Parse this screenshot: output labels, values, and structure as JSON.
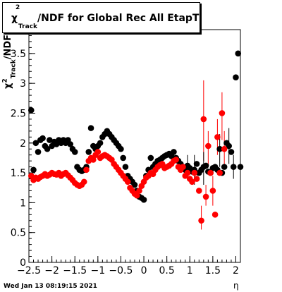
{
  "header": {
    "title_chi": "χ",
    "title_sup": "2",
    "title_sub": "Track",
    "title_rest": "/NDF for Global Rec All EtapT"
  },
  "axes": {
    "ylabel_chi": "χ",
    "ylabel_sup": "2",
    "ylabel_sub": "Track",
    "ylabel_rest": "/NDF",
    "xlabel": "η"
  },
  "footer": {
    "timestamp": "Wed Jan 13 08:19:15 2021"
  },
  "chart_data": {
    "type": "scatter",
    "xlim": [
      -2.5,
      2.1
    ],
    "ylim": [
      0,
      3.9
    ],
    "x_ticks": [
      "−2.5",
      "−2",
      "−1.5",
      "−1",
      "−0.5",
      "0",
      "0.5",
      "1",
      "1.5",
      "2"
    ],
    "y_ticks": [
      "0",
      "0.5",
      "1",
      "1.5",
      "2",
      "2.5",
      "3",
      "3.5"
    ],
    "grid": false,
    "series": [
      {
        "color": "#000000",
        "x": [
          -2.45,
          -2.4,
          -2.35,
          -2.3,
          -2.25,
          -2.2,
          -2.15,
          -2.1,
          -2.05,
          -2.0,
          -1.95,
          -1.9,
          -1.85,
          -1.8,
          -1.75,
          -1.7,
          -1.65,
          -1.6,
          -1.55,
          -1.5,
          -1.45,
          -1.4,
          -1.35,
          -1.3,
          -1.25,
          -1.2,
          -1.15,
          -1.1,
          -1.05,
          -1.0,
          -0.95,
          -0.9,
          -0.85,
          -0.8,
          -0.75,
          -0.7,
          -0.65,
          -0.6,
          -0.55,
          -0.5,
          -0.45,
          -0.4,
          -0.35,
          -0.3,
          -0.25,
          -0.2,
          -0.15,
          -0.1,
          -0.05,
          0.0,
          0.05,
          0.1,
          0.15,
          0.2,
          0.25,
          0.3,
          0.35,
          0.4,
          0.45,
          0.5,
          0.55,
          0.6,
          0.65,
          0.7,
          0.75,
          0.8,
          0.85,
          0.9,
          0.95,
          1.0,
          1.05,
          1.1,
          1.15,
          1.2,
          1.25,
          1.3,
          1.35,
          1.4,
          1.45,
          1.5,
          1.55,
          1.6,
          1.65,
          1.7,
          1.75,
          1.8,
          1.85,
          1.9,
          1.95,
          2.0,
          2.05,
          2.1
        ],
        "y": [
          2.55,
          1.55,
          2.0,
          1.85,
          2.05,
          2.08,
          1.95,
          1.9,
          2.05,
          1.95,
          2.02,
          1.98,
          2.05,
          2.0,
          2.05,
          2.0,
          2.05,
          1.98,
          1.9,
          1.85,
          1.6,
          1.55,
          1.53,
          1.55,
          1.6,
          1.85,
          2.25,
          1.95,
          1.9,
          1.95,
          2.0,
          2.1,
          2.15,
          2.2,
          2.15,
          2.1,
          2.05,
          2.0,
          1.95,
          1.9,
          1.75,
          1.6,
          1.45,
          1.4,
          1.35,
          1.3,
          1.2,
          1.1,
          1.08,
          1.05,
          1.45,
          1.55,
          1.75,
          1.6,
          1.65,
          1.7,
          1.72,
          1.75,
          1.78,
          1.8,
          1.82,
          1.78,
          1.85,
          1.75,
          1.7,
          1.65,
          1.6,
          1.55,
          1.62,
          1.58,
          1.52,
          1.55,
          1.65,
          1.5,
          1.55,
          1.6,
          1.62,
          1.52,
          1.5,
          1.58,
          1.6,
          1.55,
          1.9,
          1.5,
          1.6,
          2.0,
          1.95,
          1.85,
          1.6,
          3.1,
          3.5,
          1.6
        ]
      },
      {
        "color": "#ff0000",
        "x": [
          -2.45,
          -2.4,
          -2.35,
          -2.3,
          -2.25,
          -2.2,
          -2.15,
          -2.1,
          -2.05,
          -2.0,
          -1.95,
          -1.9,
          -1.85,
          -1.8,
          -1.75,
          -1.7,
          -1.65,
          -1.6,
          -1.55,
          -1.5,
          -1.45,
          -1.4,
          -1.35,
          -1.3,
          -1.25,
          -1.2,
          -1.15,
          -1.1,
          -1.05,
          -1.0,
          -0.95,
          -0.9,
          -0.85,
          -0.8,
          -0.75,
          -0.7,
          -0.65,
          -0.6,
          -0.55,
          -0.5,
          -0.45,
          -0.4,
          -0.35,
          -0.3,
          -0.25,
          -0.2,
          -0.15,
          -0.1,
          -0.05,
          0.0,
          0.05,
          0.1,
          0.15,
          0.2,
          0.25,
          0.3,
          0.35,
          0.4,
          0.45,
          0.5,
          0.55,
          0.6,
          0.65,
          0.7,
          0.75,
          0.8,
          0.85,
          0.9,
          0.95,
          1.0,
          1.05,
          1.1,
          1.15,
          1.2,
          1.25,
          1.3,
          1.35,
          1.4,
          1.45,
          1.5,
          1.55,
          1.6,
          1.65,
          1.7,
          1.75
        ],
        "y": [
          1.45,
          1.38,
          1.42,
          1.4,
          1.43,
          1.45,
          1.48,
          1.45,
          1.47,
          1.5,
          1.48,
          1.47,
          1.5,
          1.45,
          1.48,
          1.5,
          1.46,
          1.42,
          1.38,
          1.33,
          1.3,
          1.28,
          1.3,
          1.35,
          1.55,
          1.7,
          1.75,
          1.72,
          1.8,
          1.85,
          1.75,
          1.78,
          1.8,
          1.78,
          1.75,
          1.72,
          1.65,
          1.6,
          1.55,
          1.5,
          1.45,
          1.4,
          1.35,
          1.25,
          1.2,
          1.15,
          1.12,
          1.2,
          1.28,
          1.35,
          1.42,
          1.45,
          1.5,
          1.48,
          1.55,
          1.6,
          1.63,
          1.65,
          1.58,
          1.6,
          1.62,
          1.65,
          1.7,
          1.72,
          1.6,
          1.55,
          1.6,
          1.45,
          1.5,
          1.4,
          1.35,
          1.5,
          1.4,
          1.2,
          0.7,
          2.4,
          1.1,
          1.95,
          1.5,
          1.2,
          0.8,
          2.1,
          1.5,
          2.5,
          1.9
        ]
      }
    ],
    "error_bars": [
      {
        "series": 1,
        "x": 1.25,
        "ylow": 0.55,
        "yhigh": 0.95
      },
      {
        "series": 1,
        "x": 1.3,
        "ylow": 1.7,
        "yhigh": 3.05
      },
      {
        "series": 1,
        "x": 1.35,
        "ylow": 0.95,
        "yhigh": 1.3
      },
      {
        "series": 1,
        "x": 1.4,
        "ylow": 1.6,
        "yhigh": 2.2
      },
      {
        "series": 1,
        "x": 1.5,
        "ylow": 0.95,
        "yhigh": 1.45
      },
      {
        "series": 1,
        "x": 1.6,
        "ylow": 1.8,
        "yhigh": 2.4
      },
      {
        "series": 1,
        "x": 1.7,
        "ylow": 2.05,
        "yhigh": 2.85
      },
      {
        "series": 1,
        "x": 1.75,
        "ylow": 1.6,
        "yhigh": 2.2
      },
      {
        "series": 0,
        "x": 0.95,
        "ylow": 1.4,
        "yhigh": 1.8
      },
      {
        "series": 0,
        "x": 1.1,
        "ylow": 1.3,
        "yhigh": 1.8
      },
      {
        "series": 0,
        "x": 1.3,
        "ylow": 1.3,
        "yhigh": 1.85
      },
      {
        "series": 0,
        "x": 1.65,
        "ylow": 1.6,
        "yhigh": 2.15
      },
      {
        "series": 0,
        "x": 1.85,
        "ylow": 1.65,
        "yhigh": 2.25
      },
      {
        "series": 0,
        "x": 1.95,
        "ylow": 1.4,
        "yhigh": 1.8
      }
    ]
  }
}
